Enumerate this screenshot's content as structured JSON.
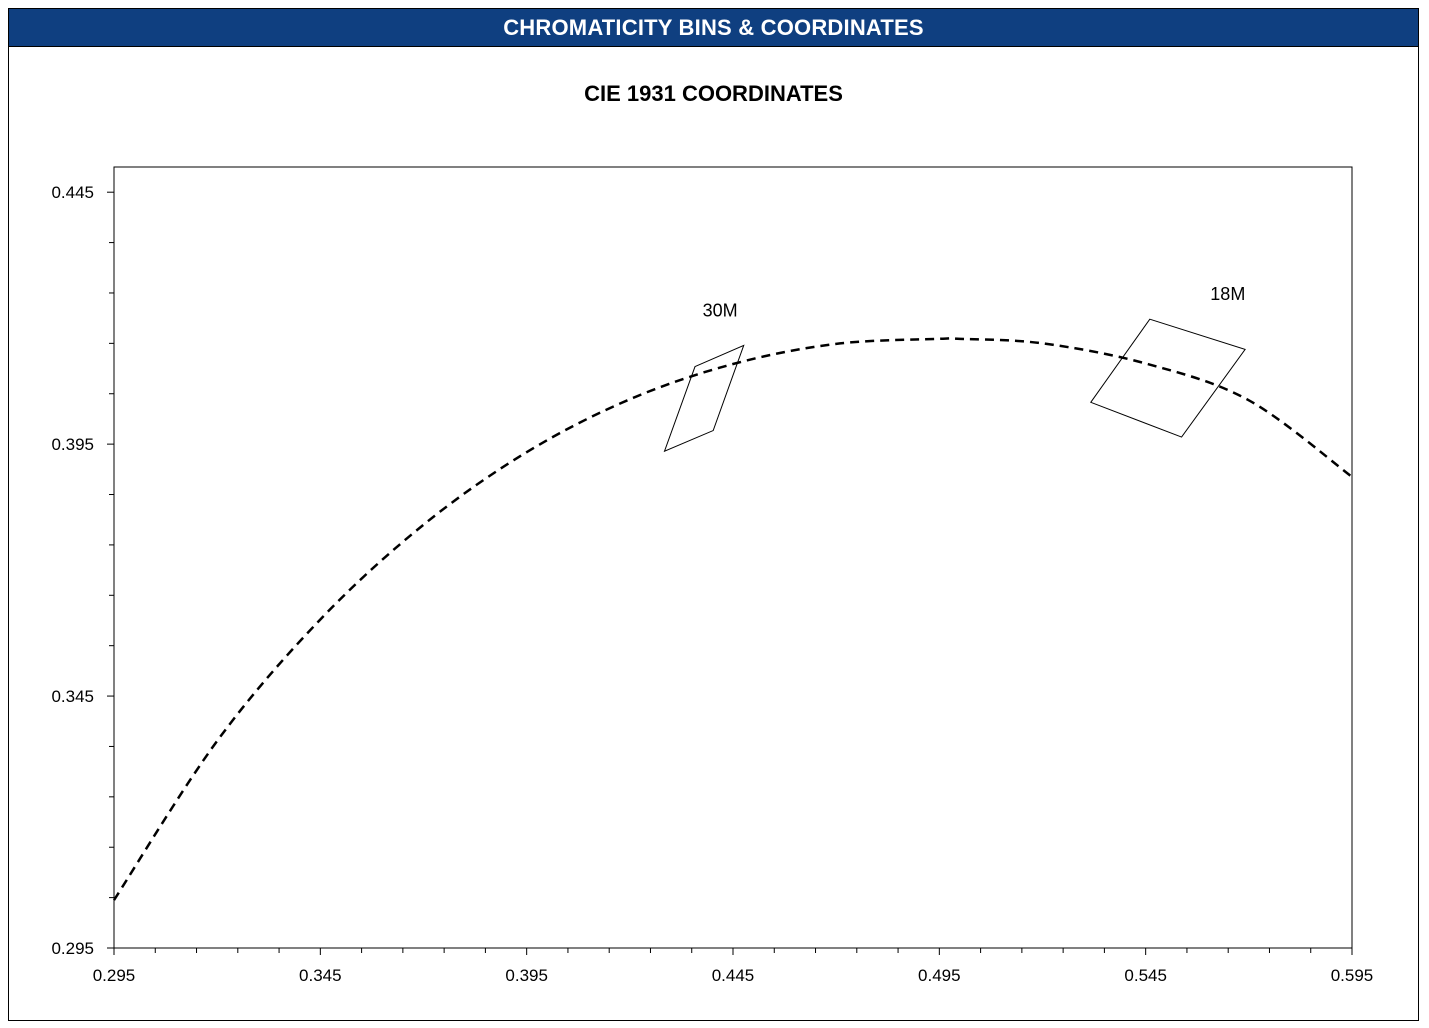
{
  "header": {
    "title": "CHROMATICITY BINS & COORDINATES"
  },
  "colors": {
    "header_bg": "#0f3f80",
    "header_text": "#ffffff",
    "line": "#000000"
  },
  "chart_data": {
    "type": "line",
    "title": "CIE 1931 COORDINATES",
    "xlabel": "",
    "ylabel": "",
    "xlim": [
      0.295,
      0.595
    ],
    "ylim": [
      0.295,
      0.45
    ],
    "x_ticks": [
      "0.295",
      "0.345",
      "0.395",
      "0.445",
      "0.495",
      "0.545",
      "0.595"
    ],
    "y_ticks": [
      "0.295",
      "0.345",
      "0.395",
      "0.445"
    ],
    "grid": false,
    "series": [
      {
        "style": "dashed",
        "x": [
          0.295,
          0.32,
          0.345,
          0.37,
          0.395,
          0.42,
          0.445,
          0.47,
          0.495,
          0.5,
          0.52,
          0.545,
          0.57,
          0.595
        ],
        "y": [
          0.3045,
          0.3361,
          0.3602,
          0.379,
          0.3934,
          0.4039,
          0.4109,
          0.4149,
          0.4159,
          0.4159,
          0.415,
          0.411,
          0.4037,
          0.3885
        ]
      }
    ],
    "bins": [
      {
        "name": "30M",
        "x": [
          0.4358,
          0.4476,
          0.4402,
          0.4284
        ],
        "y": [
          0.4104,
          0.4146,
          0.3977,
          0.3936
        ]
      },
      {
        "name": "18M",
        "x": [
          0.546,
          0.5691,
          0.5537,
          0.5317
        ],
        "y": [
          0.4198,
          0.4138,
          0.3964,
          0.4033
        ]
      }
    ]
  }
}
